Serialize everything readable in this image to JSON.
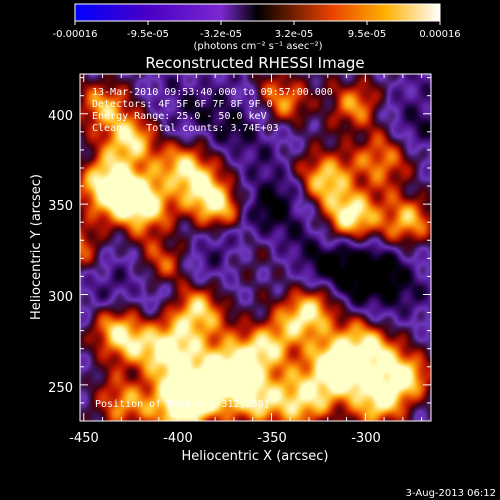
{
  "colorbar": {
    "tick_labels": [
      "-0.00016",
      "-9.5e-05",
      "-3.2e-05",
      "3.2e-05",
      "9.5e-05",
      "0.00016"
    ],
    "units": "(photons cm⁻² s⁻¹ asec⁻²)",
    "range": [
      -0.00016,
      0.00016
    ],
    "colors": [
      "#0000ff",
      "#4a00c4",
      "#7a28d0",
      "#000000",
      "#e84000",
      "#ffb000",
      "#ffffff"
    ]
  },
  "footer": {
    "date": "3-Aug-2013 06:12"
  },
  "chart_data": {
    "type": "heatmap",
    "title": "Reconstructed RHESSI Image",
    "xlabel": "Heliocentric X (arcsec)",
    "ylabel": "Heliocentric Y (arcsec)",
    "xlim": [
      -452,
      -265
    ],
    "ylim": [
      230,
      422
    ],
    "xticks": [
      -450,
      -400,
      -350,
      -300
    ],
    "yticks": [
      250,
      300,
      350,
      400
    ],
    "info_lines": [
      "13-Mar-2010 09:53:40.000 to 09:57:00.000",
      "Detectors: 4F 5F 6F 7F 8F 9F 0",
      "Energy Range: 25.0 - 50.0 keV",
      "Clean    Total counts: 3.74E+03"
    ],
    "peak_label": "Position of Peak = [-312,258]",
    "peak": [
      -312,
      258
    ],
    "sources": [
      [
        -440,
        405,
        0.6
      ],
      [
        -425,
        385,
        0.75
      ],
      [
        -438,
        360,
        0.9
      ],
      [
        -420,
        350,
        1.0
      ],
      [
        -395,
        370,
        0.8
      ],
      [
        -380,
        350,
        0.95
      ],
      [
        -408,
        318,
        0.6
      ],
      [
        -390,
        290,
        0.85
      ],
      [
        -430,
        278,
        0.85
      ],
      [
        -405,
        268,
        0.9
      ],
      [
        -385,
        248,
        0.85
      ],
      [
        -370,
        262,
        0.75
      ],
      [
        -350,
        272,
        0.65
      ],
      [
        -360,
        242,
        0.7
      ],
      [
        -400,
        238,
        0.9
      ],
      [
        -430,
        240,
        0.6
      ],
      [
        -316,
        258,
        1.0
      ],
      [
        -330,
        290,
        0.85
      ],
      [
        -300,
        272,
        0.75
      ],
      [
        -280,
        255,
        0.8
      ],
      [
        -295,
        240,
        0.7
      ],
      [
        -335,
        240,
        0.75
      ],
      [
        -322,
        365,
        0.75
      ],
      [
        -308,
        342,
        0.95
      ],
      [
        -290,
        375,
        0.65
      ],
      [
        -278,
        340,
        0.7
      ],
      [
        -345,
        408,
        0.65
      ],
      [
        -305,
        405,
        0.6
      ],
      [
        -452,
        325,
        0.65
      ],
      [
        -360,
        320,
        0.3
      ]
    ],
    "dips": [
      [
        -350,
        350,
        0.7
      ],
      [
        -380,
        325,
        0.5
      ],
      [
        -320,
        320,
        0.6
      ],
      [
        -290,
        305,
        0.55
      ],
      [
        -410,
        300,
        0.4
      ],
      [
        -440,
        315,
        0.45
      ],
      [
        -365,
        395,
        0.5
      ],
      [
        -275,
        395,
        0.45
      ],
      [
        -300,
        318,
        0.5
      ],
      [
        -395,
        400,
        0.35
      ]
    ]
  }
}
